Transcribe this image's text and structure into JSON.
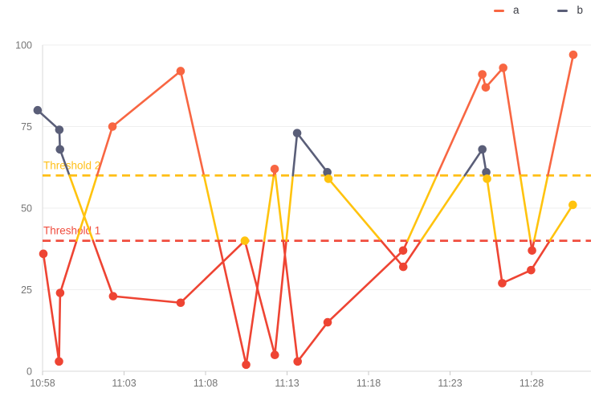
{
  "chart_data": {
    "type": "line",
    "title": "",
    "legend_position": "top-right",
    "grid": "horizontal-only",
    "x_axis": {
      "tick_labels": [
        "10:58",
        "11:03",
        "11:08",
        "11:13",
        "11:18",
        "11:23",
        "11:28"
      ],
      "tick_minutes": [
        0,
        5,
        10,
        15,
        20,
        25,
        30
      ],
      "start_time": "10:58",
      "minutes_per_tick": 5
    },
    "y_axis": {
      "min": 0,
      "max": 100,
      "ticks": [
        0,
        25,
        50,
        75,
        100
      ]
    },
    "thresholds": [
      {
        "label": "Threshold 1",
        "value": 40,
        "color": "#F04D3E"
      },
      {
        "label": "Threshold 2",
        "value": 60,
        "color": "#FFBF17"
      }
    ],
    "value_zone_colors": {
      "below_threshold_1": "#EE4433",
      "between_thresholds": "#FFC30E"
    },
    "series": [
      {
        "name": "a",
        "color": "#F86642",
        "points": [
          {
            "t": 0.05,
            "v": 36
          },
          {
            "t": 1.01,
            "v": 3
          },
          {
            "t": 1.08,
            "v": 24
          },
          {
            "t": 4.29,
            "v": 75
          },
          {
            "t": 8.47,
            "v": 92
          },
          {
            "t": 12.49,
            "v": 2
          },
          {
            "t": 14.24,
            "v": 62
          },
          {
            "t": 15.65,
            "v": 3
          },
          {
            "t": 17.49,
            "v": 15
          },
          {
            "t": 22.12,
            "v": 37
          },
          {
            "t": 26.98,
            "v": 91
          },
          {
            "t": 27.19,
            "v": 87
          },
          {
            "t": 28.26,
            "v": 93
          },
          {
            "t": 30.03,
            "v": 37
          },
          {
            "t": 32.56,
            "v": 97
          }
        ]
      },
      {
        "name": "b",
        "color": "#5A5E78",
        "points": [
          {
            "t": -0.3,
            "v": 80
          },
          {
            "t": 1.03,
            "v": 74
          },
          {
            "t": 1.07,
            "v": 68
          },
          {
            "t": 4.33,
            "v": 23
          },
          {
            "t": 8.47,
            "v": 21
          },
          {
            "t": 12.41,
            "v": 40
          },
          {
            "t": 14.25,
            "v": 5
          },
          {
            "t": 15.62,
            "v": 73
          },
          {
            "t": 17.47,
            "v": 61
          },
          {
            "t": 17.54,
            "v": 59
          },
          {
            "t": 22.13,
            "v": 32
          },
          {
            "t": 26.98,
            "v": 68
          },
          {
            "t": 27.22,
            "v": 61
          },
          {
            "t": 27.27,
            "v": 59
          },
          {
            "t": 28.2,
            "v": 27
          },
          {
            "t": 29.97,
            "v": 31
          },
          {
            "t": 32.53,
            "v": 51
          }
        ]
      }
    ],
    "colors": {
      "background": "#FFFFFF",
      "gridline": "#EFEFEF",
      "axis_line": "#D9D9D9",
      "tick_mark": "#C9C9C9",
      "axis_text": "#757575"
    }
  }
}
